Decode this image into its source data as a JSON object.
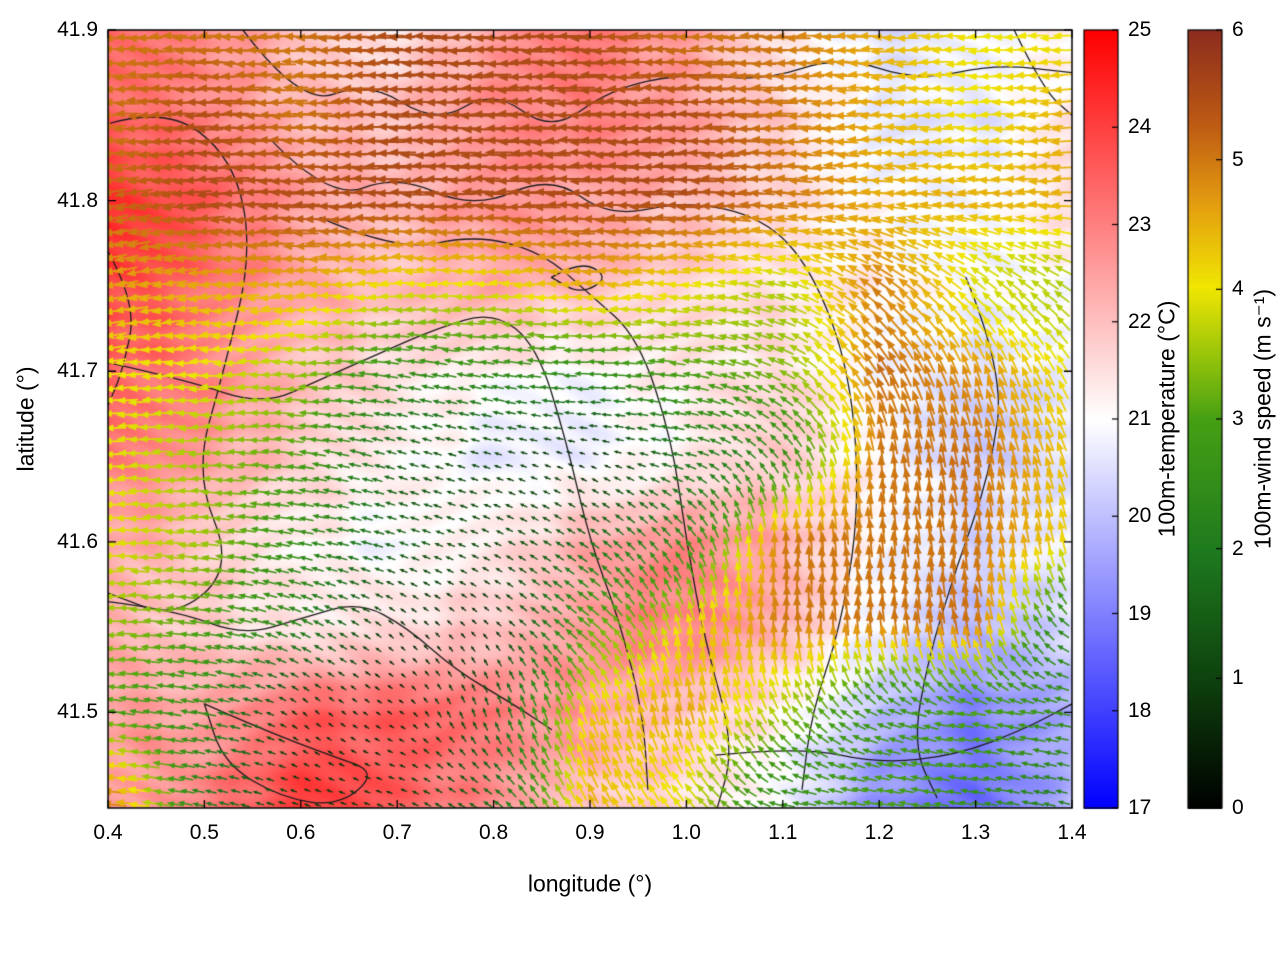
{
  "axes": {
    "xlabel": "longitude (°)",
    "ylabel": "latitude (°)",
    "xticks": [
      "0.4",
      "0.5",
      "0.6",
      "0.7",
      "0.8",
      "0.9",
      "1.0",
      "1.1",
      "1.2",
      "1.3",
      "1.4"
    ],
    "yticks": [
      "41.5",
      "41.6",
      "41.7",
      "41.8",
      "41.9"
    ]
  },
  "colorbars": {
    "temperature": {
      "label": "100m-temperature (°C)",
      "min": 17,
      "max": 25,
      "ticks": [
        "17",
        "18",
        "19",
        "20",
        "21",
        "22",
        "23",
        "24",
        "25"
      ],
      "stops": [
        [
          0,
          "#0000ff"
        ],
        [
          0.25,
          "#8080ff"
        ],
        [
          0.5,
          "#ffffff"
        ],
        [
          0.75,
          "#ff8080"
        ],
        [
          1,
          "#ff0000"
        ]
      ]
    },
    "wind": {
      "label": "100m-wind speed (m s⁻¹)",
      "min": 0,
      "max": 6,
      "ticks": [
        "0",
        "1",
        "2",
        "3",
        "4",
        "5",
        "6"
      ],
      "stops": [
        [
          0,
          "#000000"
        ],
        [
          0.17,
          "#0e430e"
        ],
        [
          0.33,
          "#1e7a1e"
        ],
        [
          0.5,
          "#46a014"
        ],
        [
          0.58,
          "#96c40a"
        ],
        [
          0.67,
          "#f0e602"
        ],
        [
          0.78,
          "#e39b10"
        ],
        [
          0.88,
          "#bd5a14"
        ],
        [
          1,
          "#8c2c1e"
        ]
      ]
    }
  },
  "chart_data": {
    "type": "heatmap",
    "overlays": [
      "wind_vectors",
      "contours"
    ],
    "title": "",
    "xlabel": "longitude (°)",
    "ylabel": "latitude (°)",
    "x_range": [
      0.4,
      1.4
    ],
    "y_range": [
      41.444,
      41.9
    ],
    "grid_lon": [
      0.4,
      0.5,
      0.6,
      0.7,
      0.8,
      0.9,
      1.0,
      1.1,
      1.2,
      1.3,
      1.4
    ],
    "grid_lat": [
      41.9,
      41.85,
      41.8,
      41.75,
      41.7,
      41.65,
      41.6,
      41.55,
      41.5,
      41.45
    ],
    "temperature_C": [
      [
        23.3,
        22.8,
        22.0,
        21.5,
        22.5,
        23.0,
        22.5,
        21.5,
        20.5,
        20.8,
        21.2
      ],
      [
        23.5,
        23.0,
        22.2,
        22.0,
        22.8,
        23.0,
        22.5,
        21.8,
        20.8,
        20.5,
        21.3
      ],
      [
        24.2,
        23.5,
        22.5,
        22.2,
        22.8,
        22.5,
        22.0,
        21.5,
        21.0,
        21.0,
        21.5
      ],
      [
        24.0,
        23.3,
        22.5,
        22.0,
        22.3,
        22.0,
        21.7,
        21.5,
        21.2,
        20.8,
        21.0
      ],
      [
        23.5,
        23.0,
        22.0,
        21.5,
        21.2,
        21.0,
        21.3,
        21.5,
        21.0,
        20.5,
        20.6
      ],
      [
        23.0,
        22.5,
        21.8,
        21.3,
        20.7,
        20.7,
        21.2,
        21.8,
        21.0,
        20.3,
        20.5
      ],
      [
        22.5,
        22.0,
        21.3,
        20.8,
        21.2,
        22.3,
        23.0,
        22.3,
        21.0,
        20.4,
        20.8
      ],
      [
        22.2,
        21.7,
        21.2,
        21.5,
        22.0,
        22.8,
        23.0,
        22.0,
        20.8,
        20.0,
        20.4
      ],
      [
        22.5,
        22.5,
        23.5,
        23.5,
        23.0,
        22.5,
        22.0,
        21.3,
        19.8,
        19.0,
        19.8
      ],
      [
        22.6,
        23.0,
        24.0,
        23.5,
        22.8,
        22.0,
        21.5,
        20.8,
        19.3,
        18.6,
        19.8
      ]
    ],
    "wind_u_ms": [
      [
        -5.0,
        -5.0,
        -5.0,
        -5.5,
        -5.5,
        -5.5,
        -5.0,
        -5.0,
        -4.5,
        -4.0,
        -4.0
      ],
      [
        -5.0,
        -5.5,
        -5.0,
        -5.5,
        -5.5,
        -5.5,
        -5.5,
        -5.0,
        -4.5,
        -4.0,
        -4.5
      ],
      [
        -5.0,
        -5.5,
        -5.5,
        -5.5,
        -5.5,
        -5.5,
        -5.5,
        -5.0,
        -4.5,
        -4.5,
        -4.5
      ],
      [
        -4.5,
        -4.5,
        -4.5,
        -4.0,
        -4.0,
        -4.5,
        -4.0,
        -3.5,
        -4.0,
        -3.0,
        -3.0
      ],
      [
        -4.0,
        -4.0,
        -3.5,
        -2.5,
        -2.5,
        -2.5,
        -3.0,
        -3.0,
        -2.5,
        -1.5,
        -2.0
      ],
      [
        -4.0,
        -3.5,
        -3.0,
        -1.5,
        -1.0,
        -0.5,
        -2.0,
        -1.5,
        -0.5,
        -1.0,
        -1.5
      ],
      [
        -4.0,
        -3.5,
        -2.5,
        -1.5,
        -1.0,
        -1.5,
        -1.5,
        0.0,
        -0.5,
        -0.5,
        -1.0
      ],
      [
        -3.5,
        -3.0,
        -2.0,
        -0.5,
        -0.5,
        -2.5,
        -1.0,
        0.0,
        -0.5,
        -1.0,
        -2.0
      ],
      [
        -3.0,
        -2.5,
        -0.5,
        -0.5,
        -0.5,
        -1.5,
        -1.0,
        -2.0,
        -2.5,
        -3.0,
        -2.5
      ],
      [
        -5.0,
        -2.0,
        -0.8,
        -0.8,
        -1.5,
        -2.0,
        -2.5,
        -2.5,
        -3.0,
        -2.5,
        -2.0
      ]
    ],
    "wind_v_ms": [
      [
        0.0,
        0.0,
        0.0,
        0.0,
        0.0,
        0.0,
        0.0,
        0.0,
        0.0,
        0.0,
        0.0
      ],
      [
        0.0,
        0.0,
        0.0,
        0.0,
        0.0,
        0.0,
        0.0,
        0.0,
        0.0,
        0.0,
        -0.5
      ],
      [
        -1.0,
        -0.5,
        0.0,
        0.0,
        0.0,
        0.0,
        0.0,
        0.5,
        0.5,
        0.5,
        0.0
      ],
      [
        -1.0,
        -0.5,
        0.0,
        0.0,
        0.0,
        0.0,
        0.5,
        1.0,
        3.0,
        2.5,
        2.0
      ],
      [
        -0.5,
        0.0,
        0.0,
        0.5,
        0.5,
        0.0,
        0.5,
        1.5,
        4.5,
        4.5,
        3.5
      ],
      [
        0.0,
        0.0,
        0.5,
        0.5,
        0.3,
        0.2,
        0.5,
        2.0,
        5.0,
        5.0,
        4.0
      ],
      [
        0.0,
        0.5,
        0.5,
        0.5,
        0.5,
        1.0,
        2.0,
        5.0,
        5.0,
        5.0,
        4.0
      ],
      [
        0.0,
        0.5,
        1.0,
        0.5,
        0.5,
        2.0,
        4.0,
        5.0,
        5.0,
        5.0,
        1.0
      ],
      [
        0.5,
        0.5,
        0.5,
        0.3,
        1.5,
        4.0,
        4.5,
        3.0,
        1.0,
        0.5,
        0.5
      ],
      [
        0.5,
        0.5,
        0.3,
        0.3,
        1.0,
        4.0,
        3.0,
        0.5,
        0.5,
        0.5,
        0.5
      ]
    ],
    "contours": [
      [
        [
          0.4,
          41.845
        ],
        [
          0.46,
          41.855
        ],
        [
          0.53,
          41.825
        ],
        [
          0.55,
          41.77
        ],
        [
          0.52,
          41.7
        ],
        [
          0.49,
          41.64
        ],
        [
          0.53,
          41.585
        ],
        [
          0.47,
          41.555
        ],
        [
          0.4,
          41.57
        ]
      ],
      [
        [
          0.54,
          41.9
        ],
        [
          0.6,
          41.855
        ],
        [
          0.67,
          41.87
        ],
        [
          0.74,
          41.845
        ],
        [
          0.8,
          41.865
        ],
        [
          0.86,
          41.84
        ],
        [
          0.92,
          41.865
        ],
        [
          1.0,
          41.875
        ],
        [
          1.08,
          41.87
        ],
        [
          1.16,
          41.885
        ],
        [
          1.24,
          41.87
        ],
        [
          1.32,
          41.88
        ],
        [
          1.4,
          41.875
        ]
      ],
      [
        [
          0.57,
          41.835
        ],
        [
          0.63,
          41.8
        ],
        [
          0.7,
          41.815
        ],
        [
          0.78,
          41.795
        ],
        [
          0.86,
          41.815
        ],
        [
          0.92,
          41.79
        ],
        [
          1.0,
          41.8
        ],
        [
          1.08,
          41.79
        ],
        [
          1.13,
          41.76
        ],
        [
          1.17,
          41.7
        ],
        [
          1.18,
          41.62
        ],
        [
          1.16,
          41.55
        ],
        [
          1.13,
          41.5
        ],
        [
          1.12,
          41.455
        ]
      ],
      [
        [
          0.62,
          41.79
        ],
        [
          0.7,
          41.77
        ],
        [
          0.78,
          41.78
        ],
        [
          0.85,
          41.77
        ],
        [
          0.9,
          41.745
        ],
        [
          0.95,
          41.72
        ],
        [
          0.985,
          41.66
        ],
        [
          1.0,
          41.6
        ],
        [
          1.02,
          41.54
        ],
        [
          1.05,
          41.48
        ],
        [
          1.03,
          41.44
        ]
      ],
      [
        [
          0.4,
          41.705
        ],
        [
          0.48,
          41.695
        ],
        [
          0.56,
          41.68
        ],
        [
          0.62,
          41.695
        ],
        [
          0.68,
          41.71
        ],
        [
          0.74,
          41.725
        ],
        [
          0.8,
          41.735
        ],
        [
          0.845,
          41.715
        ],
        [
          0.875,
          41.66
        ],
        [
          0.9,
          41.6
        ],
        [
          0.93,
          41.555
        ],
        [
          0.955,
          41.5
        ],
        [
          0.96,
          41.455
        ]
      ],
      [
        [
          0.4,
          41.565
        ],
        [
          0.47,
          41.56
        ],
        [
          0.54,
          41.545
        ],
        [
          0.6,
          41.555
        ],
        [
          0.66,
          41.565
        ],
        [
          0.71,
          41.55
        ],
        [
          0.76,
          41.525
        ],
        [
          0.82,
          41.505
        ],
        [
          0.86,
          41.49
        ]
      ],
      [
        [
          0.5,
          41.505
        ],
        [
          0.56,
          41.49
        ],
        [
          0.63,
          41.475
        ],
        [
          0.68,
          41.465
        ],
        [
          0.64,
          41.445
        ],
        [
          0.58,
          41.45
        ],
        [
          0.52,
          41.47
        ],
        [
          0.5,
          41.505
        ]
      ],
      [
        [
          1.29,
          41.755
        ],
        [
          1.33,
          41.7
        ],
        [
          1.315,
          41.64
        ],
        [
          1.28,
          41.585
        ],
        [
          1.25,
          41.53
        ],
        [
          1.235,
          41.48
        ],
        [
          1.26,
          41.45
        ]
      ],
      [
        [
          1.03,
          41.475
        ],
        [
          1.12,
          41.48
        ],
        [
          1.2,
          41.47
        ],
        [
          1.28,
          41.475
        ],
        [
          1.35,
          41.49
        ],
        [
          1.4,
          41.505
        ]
      ],
      [
        [
          1.34,
          41.9
        ],
        [
          1.37,
          41.865
        ],
        [
          1.4,
          41.85
        ]
      ],
      [
        [
          0.4,
          41.77
        ],
        [
          0.43,
          41.74
        ],
        [
          0.415,
          41.7
        ],
        [
          0.4,
          41.68
        ]
      ],
      [
        [
          0.86,
          41.755
        ],
        [
          0.89,
          41.765
        ],
        [
          0.92,
          41.755
        ],
        [
          0.89,
          41.745
        ],
        [
          0.86,
          41.755
        ]
      ]
    ]
  }
}
